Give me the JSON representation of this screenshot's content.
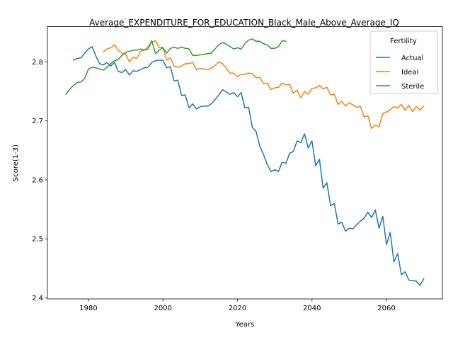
{
  "chart_data": {
    "type": "line",
    "title": "Average_EXPENDITURE_FOR_EDUCATION_Black_Male_Above_Average_IQ",
    "xlabel": "Years",
    "ylabel": "Score(1-3)",
    "xlim": [
      1969,
      2075
    ],
    "ylim": [
      2.398,
      2.86
    ],
    "xticks": [
      1980,
      2000,
      2020,
      2040,
      2060
    ],
    "yticks": [
      2.4,
      2.5,
      2.6,
      2.7,
      2.8
    ],
    "ytick_labels": [
      "2.4",
      "2.5",
      "2.6",
      "2.7",
      "2.8"
    ],
    "grid": false,
    "legend": {
      "title": "Fertility",
      "placement": "top-right"
    },
    "series": [
      {
        "name": "Actual",
        "color": "#1f77b4",
        "x": [
          1976,
          1977,
          1978,
          1979,
          1980,
          1981,
          1982,
          1983,
          1984,
          1985,
          1986,
          1987,
          1988,
          1989,
          1990,
          1991,
          1992,
          1993,
          1994,
          1995,
          1996,
          1997,
          1998,
          1999,
          2000,
          2001,
          2002,
          2003,
          2004,
          2005,
          2006,
          2007,
          2008,
          2009,
          2010,
          2011,
          2012,
          2013,
          2014,
          2015,
          2016,
          2017,
          2018,
          2019,
          2020,
          2021,
          2022,
          2023,
          2024,
          2025,
          2026,
          2027,
          2028,
          2029,
          2030,
          2031,
          2032,
          2033,
          2034,
          2035,
          2036,
          2037,
          2038,
          2039,
          2040,
          2041,
          2042,
          2043,
          2044,
          2045,
          2046,
          2047,
          2048,
          2049,
          2050,
          2051,
          2052,
          2053,
          2054,
          2055,
          2056,
          2057,
          2058,
          2059,
          2060,
          2061,
          2062,
          2063,
          2064,
          2065,
          2066,
          2067,
          2068,
          2069,
          2070
        ],
        "values": [
          2.803,
          2.806,
          2.807,
          2.815,
          2.822,
          2.826,
          2.81,
          2.797,
          2.795,
          2.799,
          2.793,
          2.799,
          2.784,
          2.782,
          2.787,
          2.778,
          2.785,
          2.784,
          2.787,
          2.79,
          2.791,
          2.799,
          2.802,
          2.803,
          2.803,
          2.79,
          2.792,
          2.768,
          2.769,
          2.743,
          2.744,
          2.722,
          2.729,
          2.72,
          2.724,
          2.725,
          2.725,
          2.729,
          2.736,
          2.744,
          2.753,
          2.749,
          2.745,
          2.748,
          2.741,
          2.748,
          2.722,
          2.723,
          2.689,
          2.682,
          2.657,
          2.643,
          2.626,
          2.614,
          2.617,
          2.614,
          2.63,
          2.628,
          2.645,
          2.648,
          2.666,
          2.663,
          2.678,
          2.654,
          2.666,
          2.624,
          2.635,
          2.586,
          2.595,
          2.556,
          2.56,
          2.525,
          2.528,
          2.513,
          2.518,
          2.517,
          2.524,
          2.53,
          2.535,
          2.545,
          2.536,
          2.549,
          2.518,
          2.538,
          2.49,
          2.511,
          2.461,
          2.475,
          2.439,
          2.444,
          2.43,
          2.429,
          2.428,
          2.421,
          2.432
        ]
      },
      {
        "name": "Ideal",
        "color": "#ff7f0e",
        "x": [
          1984,
          1985,
          1986,
          1987,
          1988,
          1989,
          1990,
          1991,
          1992,
          1993,
          1994,
          1995,
          1996,
          1997,
          1998,
          1999,
          2000,
          2001,
          2002,
          2003,
          2004,
          2005,
          2006,
          2007,
          2008,
          2009,
          2010,
          2011,
          2012,
          2013,
          2014,
          2015,
          2016,
          2017,
          2018,
          2019,
          2020,
          2021,
          2022,
          2023,
          2024,
          2025,
          2026,
          2027,
          2028,
          2029,
          2030,
          2031,
          2032,
          2033,
          2034,
          2035,
          2036,
          2037,
          2038,
          2039,
          2040,
          2041,
          2042,
          2043,
          2044,
          2045,
          2046,
          2047,
          2048,
          2049,
          2050,
          2051,
          2052,
          2053,
          2054,
          2055,
          2056,
          2057,
          2058,
          2059,
          2060,
          2061,
          2062,
          2063,
          2064,
          2065,
          2066,
          2067,
          2068,
          2069,
          2070
        ],
        "values": [
          2.817,
          2.822,
          2.824,
          2.829,
          2.82,
          2.815,
          2.813,
          2.8,
          2.808,
          2.806,
          2.818,
          2.82,
          2.826,
          2.834,
          2.836,
          2.824,
          2.825,
          2.803,
          2.807,
          2.793,
          2.791,
          2.793,
          2.797,
          2.797,
          2.799,
          2.787,
          2.789,
          2.788,
          2.787,
          2.789,
          2.794,
          2.8,
          2.797,
          2.789,
          2.781,
          2.781,
          2.775,
          2.779,
          2.779,
          2.781,
          2.78,
          2.773,
          2.774,
          2.763,
          2.764,
          2.753,
          2.756,
          2.757,
          2.764,
          2.761,
          2.762,
          2.747,
          2.752,
          2.739,
          2.75,
          2.745,
          2.755,
          2.756,
          2.76,
          2.754,
          2.757,
          2.744,
          2.745,
          2.728,
          2.733,
          2.725,
          2.731,
          2.727,
          2.723,
          2.725,
          2.706,
          2.709,
          2.687,
          2.693,
          2.69,
          2.712,
          2.715,
          2.719,
          2.724,
          2.722,
          2.728,
          2.718,
          2.726,
          2.716,
          2.724,
          2.718,
          2.725
        ]
      },
      {
        "name": "Sterile",
        "color": "#2ca02c",
        "x": [
          1974,
          1975,
          1976,
          1977,
          1978,
          1979,
          1980,
          1981,
          1982,
          1983,
          1984,
          1985,
          1986,
          1987,
          1988,
          1989,
          1990,
          1991,
          1992,
          1993,
          1994,
          1995,
          1996,
          1997,
          1998,
          1999,
          2000,
          2001,
          2002,
          2003,
          2004,
          2005,
          2006,
          2007,
          2008,
          2009,
          2010,
          2011,
          2012,
          2013,
          2014,
          2015,
          2016,
          2017,
          2018,
          2019,
          2020,
          2021,
          2022,
          2023,
          2024,
          2025,
          2026,
          2027,
          2028,
          2029,
          2030,
          2031,
          2032,
          2033
        ],
        "values": [
          2.745,
          2.754,
          2.76,
          2.765,
          2.766,
          2.772,
          2.788,
          2.791,
          2.79,
          2.788,
          2.786,
          2.791,
          2.797,
          2.802,
          2.804,
          2.811,
          2.816,
          2.818,
          2.82,
          2.82,
          2.822,
          2.82,
          2.822,
          2.836,
          2.814,
          2.82,
          2.824,
          2.815,
          2.823,
          2.825,
          2.823,
          2.825,
          2.823,
          2.822,
          2.811,
          2.811,
          2.812,
          2.813,
          2.814,
          2.815,
          2.822,
          2.829,
          2.833,
          2.83,
          2.826,
          2.822,
          2.824,
          2.822,
          2.831,
          2.837,
          2.839,
          2.835,
          2.835,
          2.831,
          2.829,
          2.823,
          2.823,
          2.826,
          2.836,
          2.835
        ]
      }
    ]
  }
}
